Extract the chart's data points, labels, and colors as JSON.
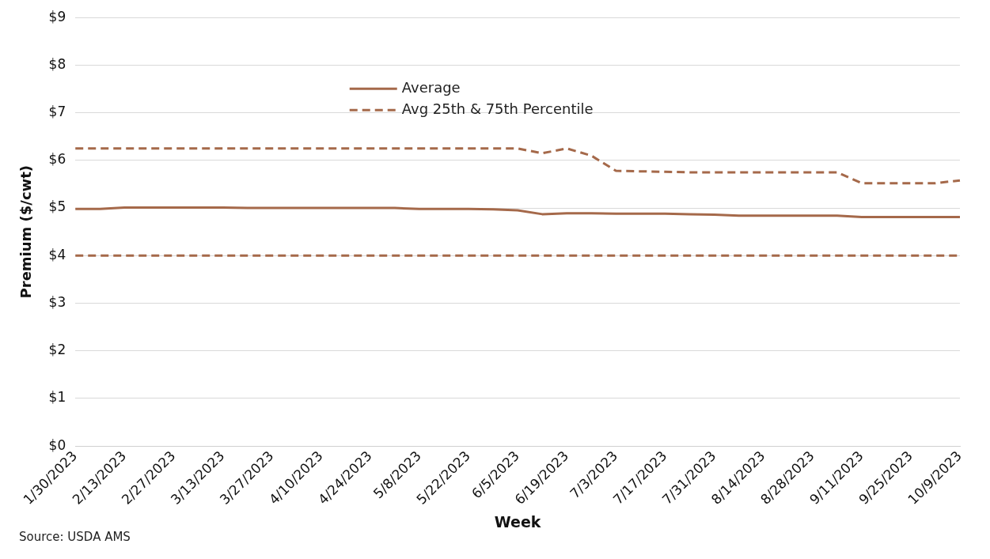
{
  "chart_data": {
    "type": "line",
    "xlabel": "Week",
    "ylabel": "Premium ($/cwt)",
    "annotations": [
      "Source: USDA AMS"
    ],
    "categories": [
      "1/30/2023",
      null,
      "2/13/2023",
      null,
      "2/27/2023",
      null,
      "3/13/2023",
      null,
      "3/27/2023",
      null,
      "4/10/2023",
      null,
      "4/24/2023",
      null,
      "5/8/2023",
      null,
      "5/22/2023",
      null,
      "6/5/2023",
      null,
      "6/19/2023",
      null,
      "7/3/2023",
      null,
      "7/17/2023",
      null,
      "7/31/2023",
      null,
      "8/14/2023",
      null,
      "8/28/2023",
      null,
      "9/11/2023",
      null,
      "9/25/2023",
      null,
      "10/9/2023"
    ],
    "series": [
      {
        "name": "Average",
        "color": "#a5694a",
        "line_style": "solid",
        "values": [
          4.98,
          4.98,
          5.01,
          5.01,
          5.01,
          5.01,
          5.01,
          5.0,
          5.0,
          5.0,
          5.0,
          5.0,
          5.0,
          5.0,
          4.98,
          4.98,
          4.98,
          4.97,
          4.95,
          4.87,
          4.89,
          4.89,
          4.88,
          4.88,
          4.88,
          4.87,
          4.86,
          4.84,
          4.84,
          4.84,
          4.84,
          4.84,
          4.81,
          4.81,
          4.81,
          4.81,
          4.81
        ]
      },
      {
        "name": "Avg 25th & 75th Percentile",
        "color": "#a5694a",
        "line_style": "dashed",
        "values": [
          6.25,
          6.25,
          6.25,
          6.25,
          6.25,
          6.25,
          6.25,
          6.25,
          6.25,
          6.25,
          6.25,
          6.25,
          6.25,
          6.25,
          6.25,
          6.25,
          6.25,
          6.25,
          6.25,
          6.15,
          6.25,
          6.1,
          5.78,
          5.77,
          5.76,
          5.75,
          5.75,
          5.75,
          5.75,
          5.75,
          5.75,
          5.75,
          5.52,
          5.52,
          5.52,
          5.52,
          5.58
        ]
      },
      {
        "color": "#a5694a",
        "line_style": "dashed",
        "values": [
          4,
          4,
          4,
          4,
          4,
          4,
          4,
          4,
          4,
          4,
          4,
          4,
          4,
          4,
          4,
          4,
          4,
          4,
          4,
          4,
          4,
          4,
          4,
          4,
          4,
          4,
          4,
          4,
          4,
          4,
          4,
          4,
          4,
          4,
          4,
          4,
          4
        ]
      }
    ],
    "ylim": [
      0,
      9
    ],
    "yticks": [
      {
        "value": 0,
        "label": "$0"
      },
      {
        "value": 1,
        "label": "$1"
      },
      {
        "value": 2,
        "label": "$2"
      },
      {
        "value": 3,
        "label": "$3"
      },
      {
        "value": 4,
        "label": "$4"
      },
      {
        "value": 5,
        "label": "$5"
      },
      {
        "value": 6,
        "label": "$6"
      },
      {
        "value": 7,
        "label": "$7"
      },
      {
        "value": 8,
        "label": "$8"
      },
      {
        "value": 9,
        "label": "$9"
      }
    ],
    "grid": "y",
    "legend": "top",
    "marker": "none"
  }
}
